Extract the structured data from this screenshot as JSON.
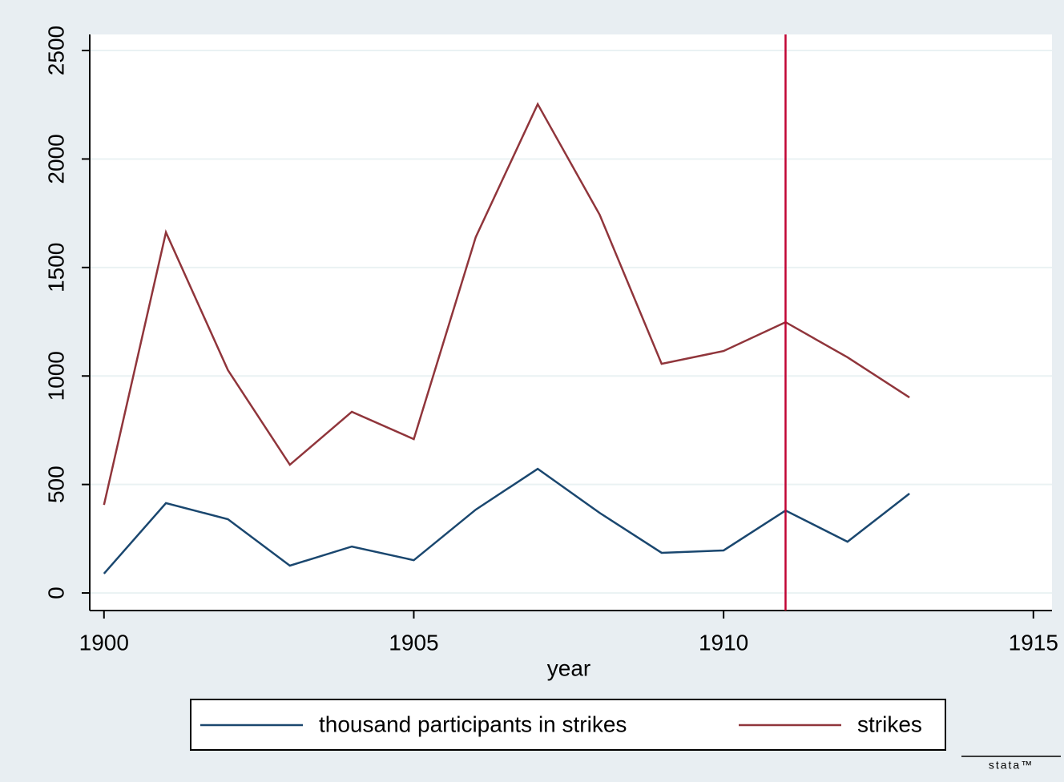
{
  "chart_data": {
    "type": "line",
    "x_label": "year",
    "x": [
      1900,
      1901,
      1902,
      1903,
      1904,
      1905,
      1906,
      1907,
      1908,
      1909,
      1910,
      1911,
      1912,
      1913
    ],
    "series": [
      {
        "name": "thousand participants in strikes",
        "color": "#1a476f",
        "values": [
          89,
          414,
          340,
          126,
          214,
          151,
          384,
          572,
          369,
          185,
          196,
          380,
          236,
          458
        ]
      },
      {
        "name": "strikes",
        "color": "#90353b",
        "values": [
          406,
          1662,
          1027,
          591,
          835,
          709,
          1640,
          2253,
          1743,
          1056,
          1115,
          1248,
          1086,
          901
        ]
      }
    ],
    "xlim": [
      1899.77,
      1915.3
    ],
    "xticks": [
      1900,
      1905,
      1910,
      1915
    ],
    "ylim": [
      -81,
      2574
    ],
    "yticks": [
      0,
      500,
      1000,
      1500,
      2000,
      2500
    ],
    "grid": true,
    "xline": {
      "value": 1911,
      "color": "#c10534"
    },
    "legend": "bottom",
    "logo": "stata™"
  }
}
